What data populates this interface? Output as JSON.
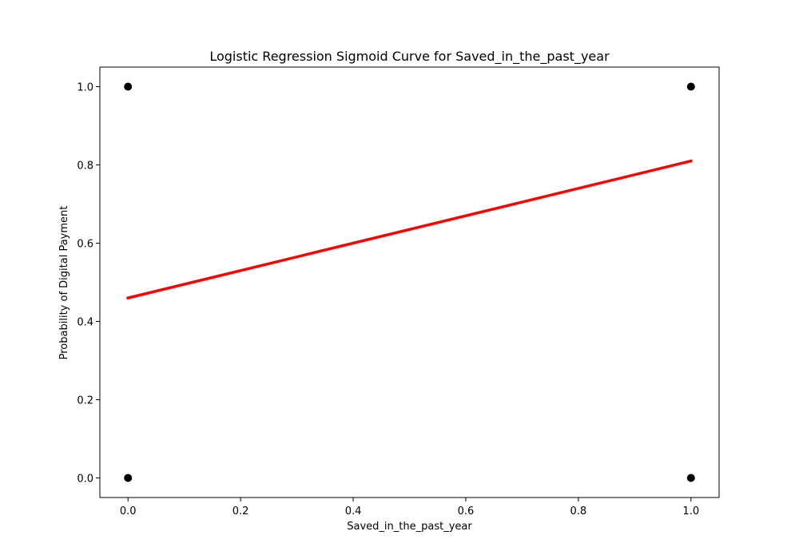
{
  "chart_data": {
    "type": "scatter",
    "title": "Logistic Regression Sigmoid Curve for Saved_in_the_past_year",
    "xlabel": "Saved_in_the_past_year",
    "ylabel": "Probability of Digital Payment",
    "xlim": [
      -0.05,
      1.05
    ],
    "ylim": [
      -0.05,
      1.05
    ],
    "x_ticks": [
      0.0,
      0.2,
      0.4,
      0.6,
      0.8,
      1.0
    ],
    "y_ticks": [
      0.0,
      0.2,
      0.4,
      0.6,
      0.8,
      1.0
    ],
    "x_tick_labels": [
      "0.0",
      "0.2",
      "0.4",
      "0.6",
      "0.8",
      "1.0"
    ],
    "y_tick_labels": [
      "0.0",
      "0.2",
      "0.4",
      "0.6",
      "0.8",
      "1.0"
    ],
    "grid": false,
    "series": [
      {
        "kind": "scatter",
        "color": "#000000",
        "points": [
          {
            "x": 0,
            "y": 0
          },
          {
            "x": 0,
            "y": 1
          },
          {
            "x": 1,
            "y": 0
          },
          {
            "x": 1,
            "y": 1
          }
        ]
      },
      {
        "kind": "line",
        "color": "#ff0000",
        "x": [
          0,
          1
        ],
        "y": [
          0.46,
          0.81
        ]
      }
    ]
  }
}
